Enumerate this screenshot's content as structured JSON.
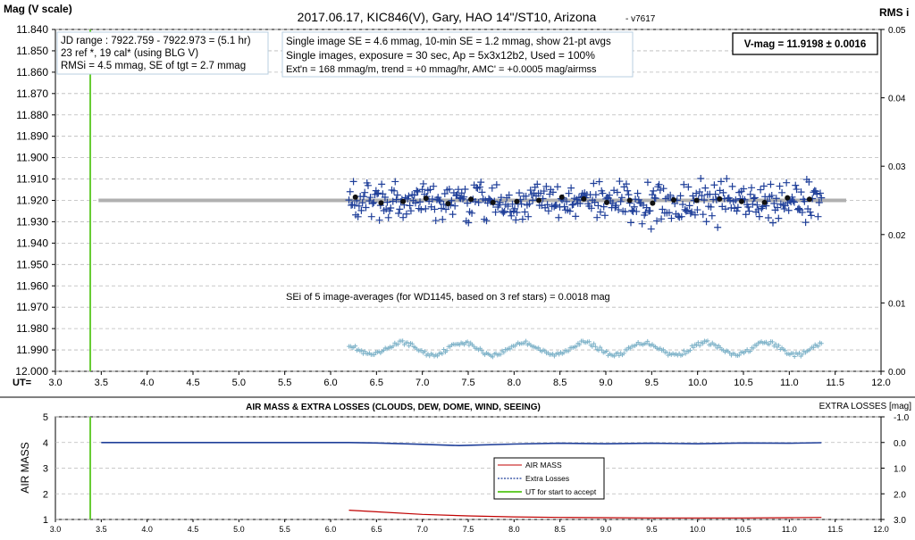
{
  "chart_data": [
    {
      "type": "scatter",
      "title": "2017.06.17,  KIC846(V),  Gary,  HAO 14\"/ST10, Arizona",
      "version": "- v7617",
      "ylabel": "Mag (V scale)",
      "y2label": "RMS i",
      "xlabel_prefix": "UT=",
      "xlim": [
        3.0,
        12.0
      ],
      "ylim": [
        11.84,
        12.0
      ],
      "y_reversed": true,
      "y2lim": [
        0.0,
        0.05
      ],
      "x_ticks": [
        "3.0",
        "3.5",
        "4.0",
        "4.5",
        "5.0",
        "5.5",
        "6.0",
        "6.5",
        "7.0",
        "7.5",
        "8.0",
        "8.5",
        "9.0",
        "9.5",
        "10.0",
        "10.5",
        "11.0",
        "11.5",
        "12.0"
      ],
      "y_ticks": [
        "11.840",
        "11.850",
        "11.860",
        "11.870",
        "11.880",
        "11.890",
        "11.900",
        "11.910",
        "11.920",
        "11.930",
        "11.940",
        "11.950",
        "11.960",
        "11.970",
        "11.980",
        "11.990",
        "12.000"
      ],
      "y2_ticks": [
        "0.05",
        "0.04",
        "0.03",
        "0.02",
        "0.01",
        "0.00"
      ],
      "info_box_1": [
        "JD range : 7922.759 - 7922.973 = (5.1 hr)",
        "23 ref *, 19 cal* (using BLG V)",
        "RMSi = 4.5 mmag, SE of tgt = 2.7 mmag"
      ],
      "info_box_2": [
        "Single image SE = 4.6 mmag, 10-min SE = 1.2 mmag, show 21-pt avgs",
        "Single images, exposure = 30 sec, Ap = 5x3x12b2, Used = 100%",
        "Ext'n = 168 mmag/m, trend = +0 mmag/hr, AMC' = +0.0005 mag/airmss"
      ],
      "vmag_box": "V-mag = 11.9198 ± 0.0016",
      "sei_note": "SEi of 5 image-averages (for WD1145, based on 3 ref stars) = 0.0018 mag",
      "series": [
        {
          "kind": "single-images",
          "color": "#1f3f99",
          "x_range": [
            6.2,
            11.35
          ],
          "y_center": 11.9205,
          "y_scatter_sd": 0.0046
        },
        {
          "kind": "averages",
          "color": "#111111",
          "x": [
            6.27,
            6.55,
            6.79,
            7.04,
            7.28,
            7.53,
            7.77,
            8.03,
            8.27,
            8.52,
            8.76,
            9.01,
            9.26,
            9.51,
            9.74,
            9.99,
            10.24,
            10.48,
            10.73,
            10.98,
            11.22
          ],
          "values": [
            11.9185,
            11.9212,
            11.9205,
            11.919,
            11.9215,
            11.9195,
            11.921,
            11.9205,
            11.92,
            11.9185,
            11.9193,
            11.921,
            11.92,
            11.9213,
            11.9198,
            11.92,
            11.9193,
            11.9205,
            11.921,
            11.9188,
            11.9195
          ]
        },
        {
          "kind": "reference-line",
          "color": "#b0b0b0",
          "x": [
            3.47,
            11.62
          ],
          "values": [
            11.92,
            11.92
          ]
        },
        {
          "kind": "rms-i",
          "axis": "y2",
          "color": "#7fb3c9",
          "x_range": [
            6.2,
            11.35
          ],
          "y_base": 0.0033,
          "y_amp": 0.0015
        },
        {
          "kind": "ut-start",
          "color": "#66cc33",
          "x": 3.38
        }
      ]
    },
    {
      "type": "line",
      "title": "AIR MASS & EXTRA LOSSES (CLOUDS, DEW, DOME, WIND, SEEING)",
      "ylabel": "AIR MASS",
      "y2label": "EXTRA LOSSES [mag]",
      "xlim": [
        3.0,
        12.0
      ],
      "ylim": [
        1,
        5
      ],
      "y2lim": [
        3.0,
        -1.0
      ],
      "x_ticks": [
        "3.0",
        "3.5",
        "4.0",
        "4.5",
        "5.0",
        "5.5",
        "6.0",
        "6.5",
        "7.0",
        "7.5",
        "8.0",
        "8.5",
        "9.0",
        "9.5",
        "10.0",
        "10.5",
        "11.0",
        "11.5",
        "12.0"
      ],
      "y_ticks": [
        "5",
        "4",
        "3",
        "2",
        "1"
      ],
      "y2_ticks": [
        "-1.0",
        "0.0",
        "1.0",
        "2.0",
        "3.0"
      ],
      "legend": [
        "AIR MASS",
        "Extra Losses",
        "UT for start to accept"
      ],
      "series": [
        {
          "name": "AIR MASS",
          "color": "#c00000",
          "x": [
            6.2,
            6.5,
            7.0,
            7.5,
            8.0,
            8.5,
            9.0,
            9.5,
            10.0,
            10.5,
            11.0,
            11.35
          ],
          "values": [
            1.36,
            1.3,
            1.2,
            1.14,
            1.1,
            1.08,
            1.07,
            1.06,
            1.06,
            1.06,
            1.07,
            1.08
          ]
        },
        {
          "name": "Extra Losses",
          "color": "#1f3f99",
          "x": [
            3.5,
            6.2,
            6.5,
            7.0,
            7.4,
            8.0,
            8.5,
            9.0,
            9.5,
            10.0,
            10.5,
            11.0,
            11.35
          ],
          "values": [
            0.0,
            0.0,
            0.02,
            0.07,
            0.12,
            0.06,
            0.03,
            0.05,
            0.03,
            0.05,
            0.02,
            0.03,
            0.01
          ]
        },
        {
          "name": "UT for start to accept",
          "color": "#66cc33",
          "x": 3.38
        }
      ]
    }
  ]
}
